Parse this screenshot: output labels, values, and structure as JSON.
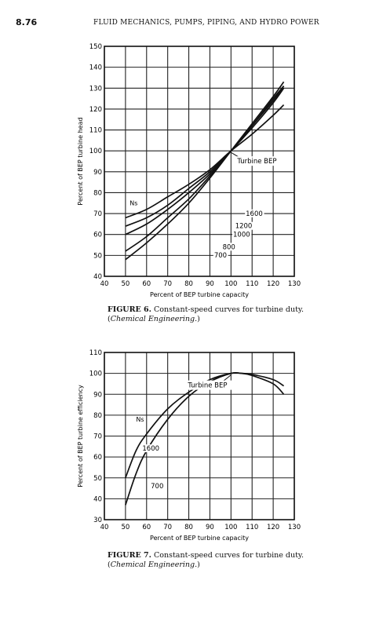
{
  "header": {
    "page_number": "8.76",
    "running_title": "FLUID MECHANICS, PUMPS, PIPING, AND HYDRO POWER"
  },
  "figures": [
    {
      "caption_label": "FIGURE 6.",
      "caption_text": "Constant-speed curves for turbine duty. (",
      "caption_source": "Chemical Engineering.",
      "caption_close": ")"
    },
    {
      "caption_label": "FIGURE 7.",
      "caption_text": "Constant-speed curves for turbine duty. (",
      "caption_source": "Chemical Engineering.",
      "caption_close": ")"
    }
  ],
  "chart_data": [
    {
      "type": "line",
      "xlabel": "Percent of BEP turbine capacity",
      "ylabel": "Percent of BEP turbine head",
      "xlim": [
        40,
        130
      ],
      "ylim": [
        40,
        150
      ],
      "xticks": [
        40,
        50,
        60,
        70,
        80,
        90,
        100,
        110,
        120,
        130
      ],
      "xtick_labels": [
        "40",
        "50",
        "60",
        "70",
        "80",
        "90",
        "100",
        "110",
        "120",
        "130"
      ],
      "yticks": [
        40,
        50,
        60,
        70,
        80,
        90,
        100,
        110,
        120,
        130,
        140,
        150
      ],
      "ytick_labels": [
        "40",
        "50",
        "60",
        "70",
        "80",
        "90",
        "100",
        "110",
        "120",
        "130",
        "140",
        "150"
      ],
      "grid": true,
      "series_label": "Ns",
      "annotations": [
        {
          "text": "Turbine BEP",
          "x": 100,
          "y": 100
        }
      ],
      "series": [
        {
          "name": "700",
          "x": [
            50,
            60,
            70,
            80,
            90,
            100,
            110,
            120,
            125
          ],
          "y": [
            48,
            56,
            65,
            75,
            87,
            100,
            113,
            126,
            133
          ]
        },
        {
          "name": "800",
          "x": [
            50,
            60,
            70,
            80,
            90,
            100,
            110,
            120,
            125
          ],
          "y": [
            52,
            59,
            68,
            77,
            88,
            100,
            112,
            125,
            131
          ]
        },
        {
          "name": "1000",
          "x": [
            50,
            60,
            70,
            80,
            90,
            100,
            110,
            120,
            125
          ],
          "y": [
            60,
            65,
            72,
            80,
            89,
            100,
            112,
            124,
            131
          ]
        },
        {
          "name": "1200",
          "x": [
            50,
            60,
            70,
            80,
            90,
            100,
            110,
            120,
            125
          ],
          "y": [
            64,
            68,
            74,
            82,
            90,
            100,
            111,
            123,
            130
          ]
        },
        {
          "name": "1600",
          "x": [
            50,
            60,
            70,
            80,
            90,
            100,
            110,
            120,
            125
          ],
          "y": [
            68,
            72,
            78,
            84,
            91,
            100,
            108,
            117,
            122
          ]
        }
      ]
    },
    {
      "type": "line",
      "xlabel": "Percent of BEP turbine capacity",
      "ylabel": "Percent of BEP turbine efficiency",
      "xlim": [
        40,
        130
      ],
      "ylim": [
        30,
        110
      ],
      "xticks": [
        40,
        50,
        60,
        70,
        80,
        90,
        100,
        110,
        120,
        130
      ],
      "xtick_labels": [
        "40",
        "50",
        "60",
        "70",
        "80",
        "90",
        "100",
        "110",
        "120",
        "130"
      ],
      "yticks": [
        30,
        40,
        50,
        60,
        70,
        80,
        90,
        100,
        110
      ],
      "ytick_labels": [
        "30",
        "40",
        "50",
        "60",
        "70",
        "80",
        "90",
        "100",
        "110"
      ],
      "grid": true,
      "series_label": "Ns",
      "annotations": [
        {
          "text": "Turbine BEP",
          "x": 100,
          "y": 100
        }
      ],
      "series": [
        {
          "name": "700",
          "x": [
            50,
            55,
            60,
            70,
            80,
            90,
            100,
            105,
            110,
            120,
            125
          ],
          "y": [
            37,
            52,
            63,
            78,
            89,
            96,
            100,
            100,
            99.5,
            97,
            94
          ]
        },
        {
          "name": "1600",
          "x": [
            50,
            55,
            60,
            70,
            80,
            90,
            100,
            105,
            110,
            120,
            125
          ],
          "y": [
            50,
            63,
            71,
            83,
            91,
            97,
            100,
            100,
            99,
            95,
            90
          ]
        }
      ]
    }
  ]
}
